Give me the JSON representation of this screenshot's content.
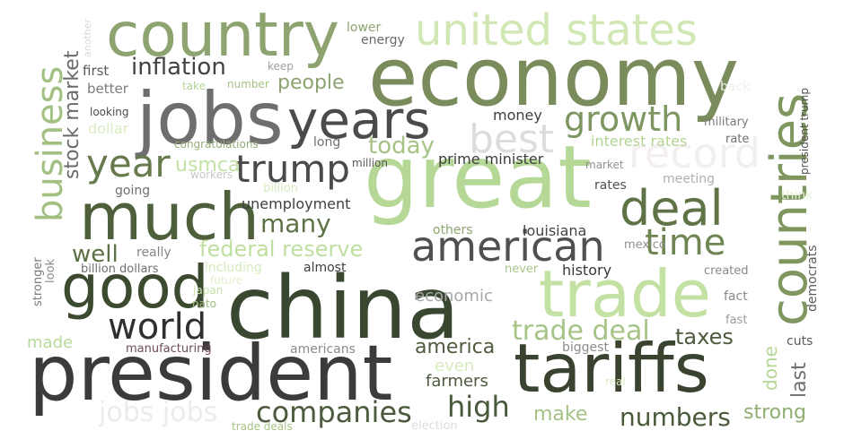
{
  "words": [
    {
      "text": "china",
      "color": "#394630"
    },
    {
      "text": "economy",
      "color": "#7b8c5c"
    },
    {
      "text": "great",
      "color": "#b5d896"
    },
    {
      "text": "president",
      "color": "#3b3b3b"
    },
    {
      "text": "jobs",
      "color": "#6e6e6e"
    },
    {
      "text": "country",
      "color": "#8ea470"
    },
    {
      "text": "tariffs",
      "color": "#39432f"
    },
    {
      "text": "much",
      "color": "#4e5f3c"
    },
    {
      "text": "trade",
      "color": "#c2e1a2"
    },
    {
      "text": "good",
      "color": "#3c4a30"
    },
    {
      "text": "years",
      "color": "#4b4b4b"
    },
    {
      "text": "united states",
      "color": "#d1e8b4"
    },
    {
      "text": "countries",
      "color": "#7f965f"
    },
    {
      "text": "american",
      "color": "#50504f"
    },
    {
      "text": "deal",
      "color": "#5f7347"
    },
    {
      "text": "best",
      "color": "#dcdcdc"
    },
    {
      "text": "year",
      "color": "#677a4c"
    },
    {
      "text": "trump",
      "color": "#4a4a4a"
    },
    {
      "text": "time",
      "color": "#708652"
    },
    {
      "text": "world",
      "color": "#2f2f2f"
    },
    {
      "text": "growth",
      "color": "#7e9760"
    },
    {
      "text": "record",
      "color": "#f3eff0"
    },
    {
      "text": "business",
      "color": "#a3c083"
    },
    {
      "text": "inflation",
      "color": "#424242"
    },
    {
      "text": "trade deal",
      "color": "#a7c487"
    },
    {
      "text": "companies",
      "color": "#4d5a3d"
    },
    {
      "text": "numbers",
      "color": "#4a5a3b"
    },
    {
      "text": "high",
      "color": "#48583a"
    },
    {
      "text": "federal reserve",
      "color": "#bfdfa0"
    },
    {
      "text": "stock market",
      "color": "#6a6a6a"
    },
    {
      "text": "many",
      "color": "#5e7345"
    },
    {
      "text": "jobs jobs",
      "color": "#ececec"
    },
    {
      "text": "well",
      "color": "#5c7045"
    },
    {
      "text": "today",
      "color": "#a6c386"
    },
    {
      "text": "people",
      "color": "#8ca371"
    },
    {
      "text": "strong",
      "color": "#8fae71"
    },
    {
      "text": "taxes",
      "color": "#4d5a3e"
    },
    {
      "text": "america",
      "color": "#4e5b3e"
    },
    {
      "text": "usmca",
      "color": "#c3e2a5"
    },
    {
      "text": "last",
      "color": "#6f6f6f"
    },
    {
      "text": "make",
      "color": "#a5c285"
    },
    {
      "text": "done",
      "color": "#b5d595"
    },
    {
      "text": "economic",
      "color": "#a8a8a8"
    },
    {
      "text": "farmers",
      "color": "#4d5a3e"
    },
    {
      "text": "even",
      "color": "#d7ebbe"
    },
    {
      "text": "unemployment",
      "color": "#404040"
    },
    {
      "text": "prime minister",
      "color": "#3d3d3d"
    },
    {
      "text": "louisiana",
      "color": "#444444"
    },
    {
      "text": "money",
      "color": "#404040"
    },
    {
      "text": "history",
      "color": "#383838"
    },
    {
      "text": "democrats",
      "color": "#5c5c5c"
    },
    {
      "text": "made",
      "color": "#b9d99b"
    },
    {
      "text": "interest rates",
      "color": "#b3d593"
    },
    {
      "text": "others",
      "color": "#8da56f"
    },
    {
      "text": "better",
      "color": "#7b7b7b"
    },
    {
      "text": "first",
      "color": "#5a5a5a"
    },
    {
      "text": "dollar",
      "color": "#d9ecc3"
    },
    {
      "text": "rates",
      "color": "#505050"
    },
    {
      "text": "really",
      "color": "#868686"
    },
    {
      "text": "almost",
      "color": "#404040"
    },
    {
      "text": "biggest",
      "color": "#8b8b8b"
    },
    {
      "text": "americans",
      "color": "#8a8a8a"
    },
    {
      "text": "lower",
      "color": "#8ea470"
    },
    {
      "text": "energy",
      "color": "#6a6a6a"
    },
    {
      "text": "meeting",
      "color": "#b0b0b0"
    },
    {
      "text": "long",
      "color": "#707070"
    },
    {
      "text": "going",
      "color": "#707070"
    },
    {
      "text": "stronger",
      "color": "#7b7b7b"
    },
    {
      "text": "look",
      "color": "#8a8a8a"
    },
    {
      "text": "think",
      "color": "#e6f2d6"
    },
    {
      "text": "fact",
      "color": "#8a8a8a"
    },
    {
      "text": "fast",
      "color": "#9a9a9a"
    },
    {
      "text": "cuts",
      "color": "#5a5a5a"
    },
    {
      "text": "military",
      "color": "#7b7b7b"
    },
    {
      "text": "created",
      "color": "#8a8a8a"
    },
    {
      "text": "rate",
      "color": "#707070"
    },
    {
      "text": "never",
      "color": "#a8c689"
    },
    {
      "text": "mexico",
      "color": "#909090"
    },
    {
      "text": "president trump",
      "color": "#525252"
    },
    {
      "text": "back",
      "color": "#eef2ea"
    },
    {
      "text": "market",
      "color": "#909090"
    },
    {
      "text": "manufacturing",
      "color": "#6e4b5c"
    },
    {
      "text": "including",
      "color": "#d4ecbc"
    },
    {
      "text": "future",
      "color": "#e1f0cf"
    },
    {
      "text": "japan",
      "color": "#c7e3ab"
    },
    {
      "text": "nato",
      "color": "#9fbe80"
    },
    {
      "text": "billion dollars",
      "color": "#707070"
    },
    {
      "text": "billion",
      "color": "#d6ecc0"
    },
    {
      "text": "workers",
      "color": "#c8c8c8"
    },
    {
      "text": "million",
      "color": "#5a5a5a"
    },
    {
      "text": "congratulations",
      "color": "#94ad77"
    },
    {
      "text": "number",
      "color": "#a6c386"
    },
    {
      "text": "take",
      "color": "#b5d595"
    },
    {
      "text": "looking",
      "color": "#4a4a4a"
    },
    {
      "text": "keep",
      "color": "#a0a0a0"
    },
    {
      "text": "another",
      "color": "#d8d8d8"
    },
    {
      "text": "election",
      "color": "#dcdcdc"
    },
    {
      "text": "trade deals",
      "color": "#a6c386"
    },
    {
      "text": "real",
      "color": "#d9ecc3"
    }
  ]
}
